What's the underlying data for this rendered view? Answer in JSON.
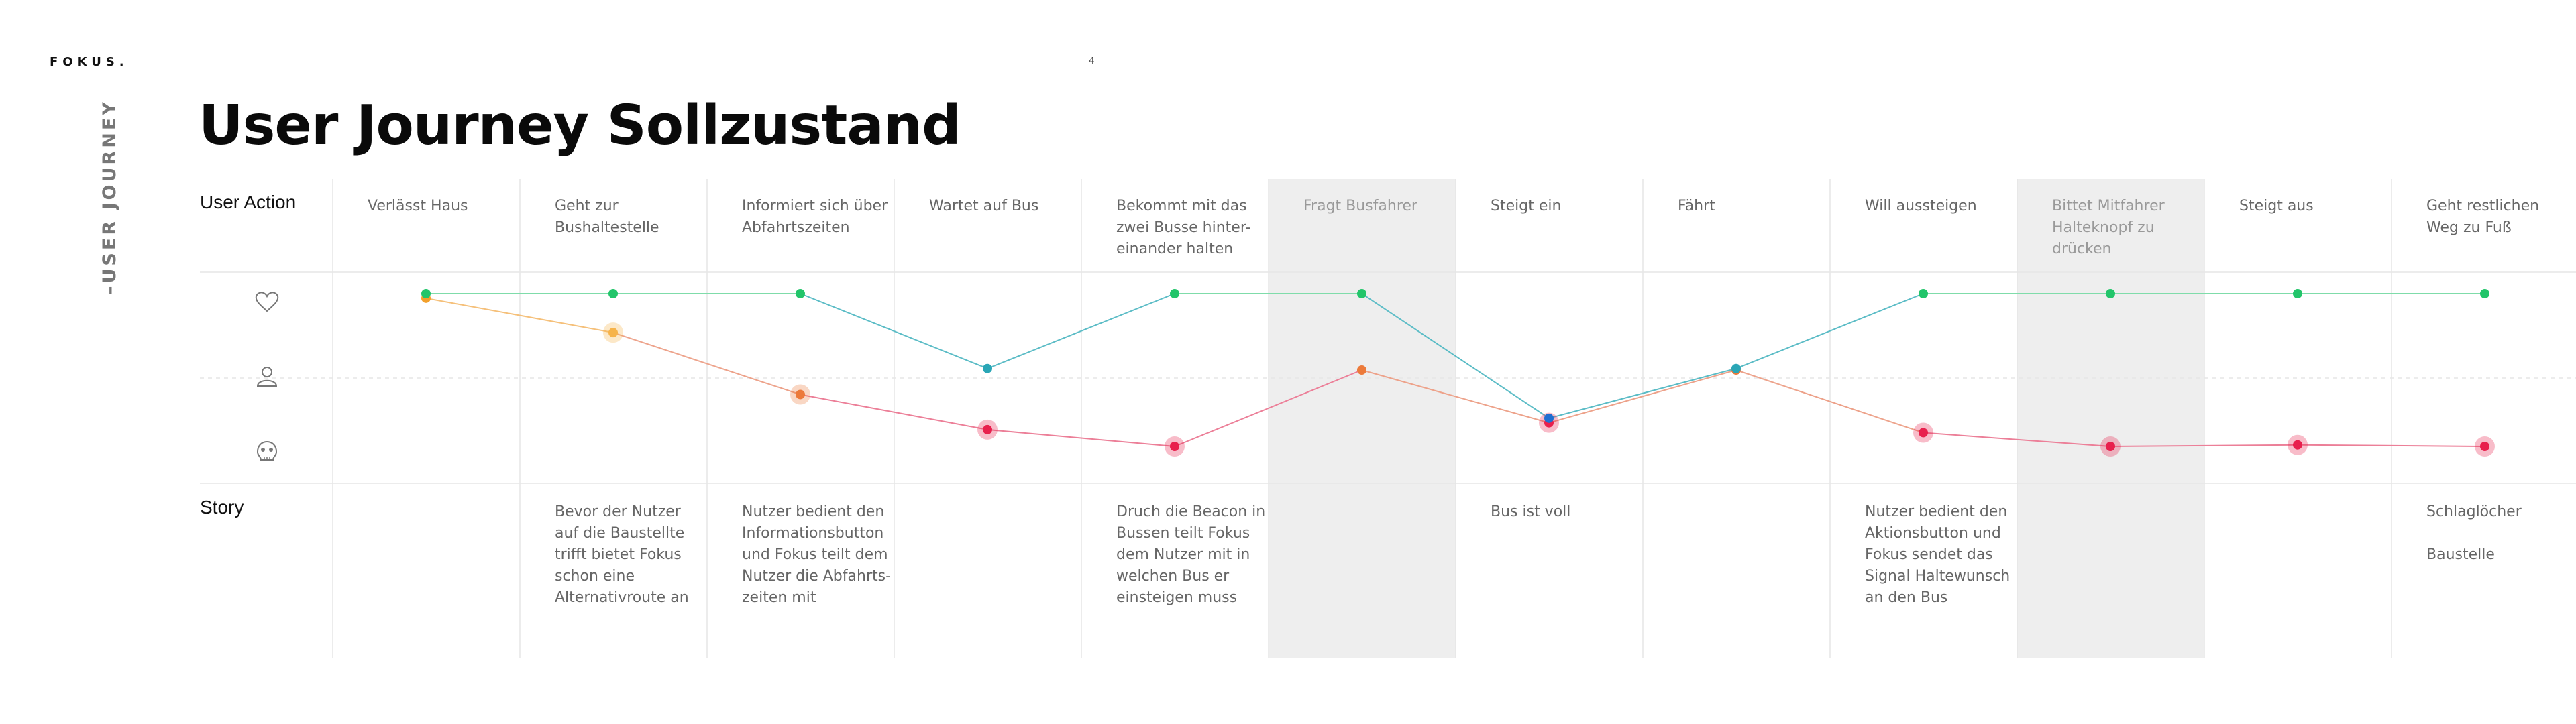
{
  "header": {
    "logo": "FOKUS.",
    "page_number": "4",
    "section_label": "–USER JOURNEY",
    "title": "User Journey Sollzustand"
  },
  "rows": {
    "action_label": "User Action",
    "story_label": "Story",
    "emotion_icons": [
      "heart-icon",
      "person-icon",
      "skull-icon"
    ]
  },
  "colors": {
    "green": "#22c56a",
    "teal": "#2aa6b6",
    "blue": "#1f6fd1",
    "orange": "#f2a02c",
    "red": "#e8204d",
    "highlight": "#eeeeee",
    "grid": "#e6e6e6"
  },
  "steps": [
    {
      "action": [
        "Verlässt Haus"
      ],
      "story": [],
      "highlight": false
    },
    {
      "action": [
        "Geht zur",
        "Bushaltestelle"
      ],
      "story": [
        "Bevor der Nutzer",
        "auf die Baustellte",
        "trifft bietet Fokus",
        "schon eine",
        "Alternativroute an"
      ],
      "highlight": false
    },
    {
      "action": [
        "Informiert sich über",
        "Abfahrtszeiten"
      ],
      "story": [
        "Nutzer bedient den",
        "Informationsbutton",
        "und Fokus teilt dem",
        "Nutzer die Abfahrts-",
        "zeiten mit"
      ],
      "highlight": false
    },
    {
      "action": [
        "Wartet auf Bus"
      ],
      "story": [],
      "highlight": false
    },
    {
      "action": [
        "Bekommt mit das",
        "zwei Busse hinter-",
        "einander halten"
      ],
      "story": [
        "Druch die Beacon in",
        "Bussen teilt Fokus",
        "dem Nutzer mit in",
        "welchen Bus er",
        "einsteigen muss"
      ],
      "highlight": false
    },
    {
      "action": [
        "Fragt Busfahrer"
      ],
      "story": [],
      "highlight": true
    },
    {
      "action": [
        "Steigt ein"
      ],
      "story": [
        "Bus ist voll"
      ],
      "highlight": false
    },
    {
      "action": [
        "Fährt"
      ],
      "story": [],
      "highlight": false
    },
    {
      "action": [
        "Will aussteigen"
      ],
      "story": [
        "Nutzer bedient den",
        "Aktionsbutton und",
        "Fokus sendet das",
        "Signal Haltewunsch",
        "an den Bus"
      ],
      "highlight": false
    },
    {
      "action": [
        "Bittet Mitfahrer",
        "Halteknopf zu",
        "drücken"
      ],
      "story": [],
      "highlight": true
    },
    {
      "action": [
        "Steigt aus"
      ],
      "story": [],
      "highlight": false
    },
    {
      "action": [
        "Geht restlichen",
        "Weg zu Fuß"
      ],
      "story": [
        "Schlaglöcher",
        "",
        "Baustelle"
      ],
      "highlight": false
    }
  ],
  "chart_data": {
    "type": "line",
    "x": [
      "Verlässt Haus",
      "Geht zur Bushaltestelle",
      "Informiert sich über Abfahrtszeiten",
      "Wartet auf Bus",
      "Bekommt mit das zwei Busse hintereinander halten",
      "Fragt Busfahrer",
      "Steigt ein",
      "Fährt",
      "Will aussteigen",
      "Bittet Mitfahrer Halteknopf zu drücken",
      "Steigt aus",
      "Geht restlichen Weg zu Fuß"
    ],
    "ylim": [
      -1,
      1
    ],
    "series": [
      {
        "values": [
          1,
          1,
          1,
          0.02,
          1,
          1,
          -0.63,
          0.02,
          1,
          1,
          1,
          1
        ]
      },
      {
        "values": [
          0.94,
          0.49,
          -0.32,
          -0.78,
          -1,
          0,
          -0.69,
          0,
          -0.82,
          -1,
          -0.98,
          -1
        ]
      }
    ]
  }
}
